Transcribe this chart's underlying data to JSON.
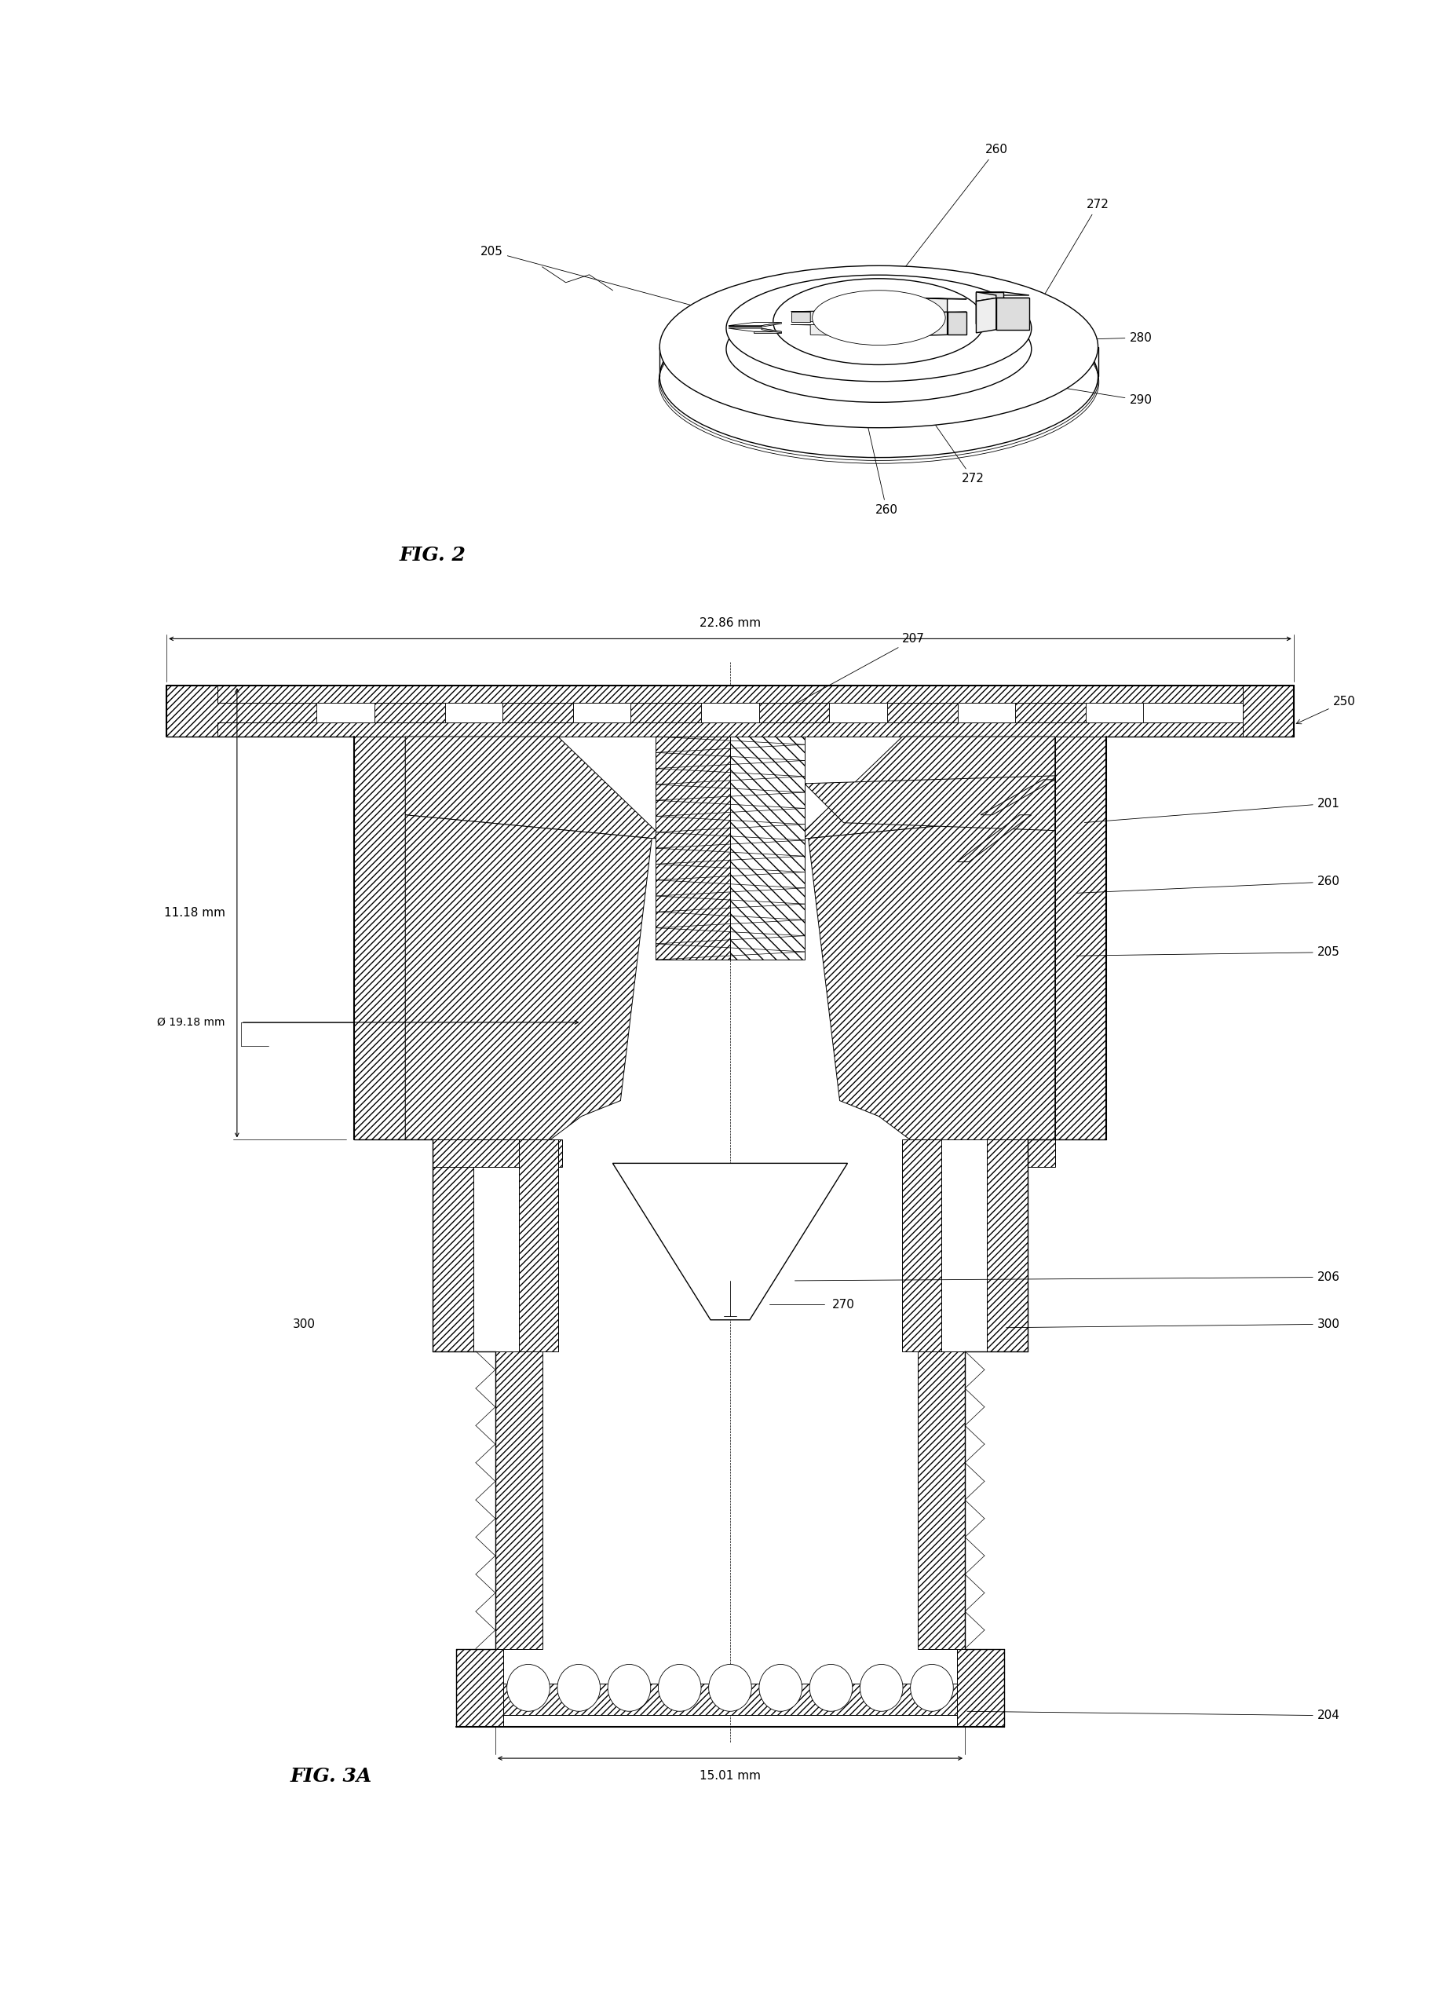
{
  "bg_color": "#ffffff",
  "line_color": "#000000",
  "fig2_label": "FIG. 2",
  "fig3a_label": "FIG. 3A",
  "dim_22_86": "22.86 mm",
  "dim_11_18": "11.18 mm",
  "dim_19_18": "Ø 19.18 mm",
  "dim_15_01": "15.01 mm",
  "font_size_label": 11,
  "font_size_fig": 18,
  "font_size_dim": 11
}
